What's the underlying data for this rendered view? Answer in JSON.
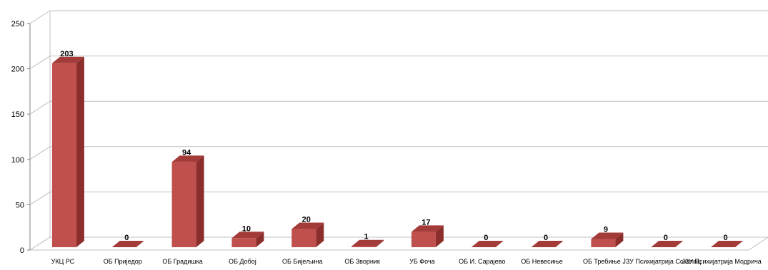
{
  "chart_data": {
    "type": "bar",
    "three_d": true,
    "categories": [
      "УКЦ РС",
      "ОБ Приједор",
      "ОБ Градишка",
      "ОБ Добој",
      "ОБ Бијељина",
      "ОБ Зворник",
      "УБ Фоча",
      "ОБ И. Сарајево",
      "ОБ Невесиње",
      "ОБ Требиње",
      "ЈЗУ Психијатрија Соколац",
      "ЈЗУ Психијатрија Модрича"
    ],
    "values": [
      203,
      0,
      94,
      10,
      20,
      1,
      17,
      0,
      0,
      9,
      0,
      0
    ],
    "ylim": [
      0,
      250
    ],
    "yticks": [
      0,
      50,
      100,
      150,
      200,
      250
    ],
    "grid": true,
    "legend": "none",
    "title": "",
    "xlabel": "",
    "ylabel": "",
    "colors": {
      "bar_front": "#c0504d",
      "bar_side": "#8c2e2c",
      "bar_top": "#a33b39",
      "grid": "#bfbfbf",
      "axis": "#808080",
      "text": "#000000"
    }
  }
}
